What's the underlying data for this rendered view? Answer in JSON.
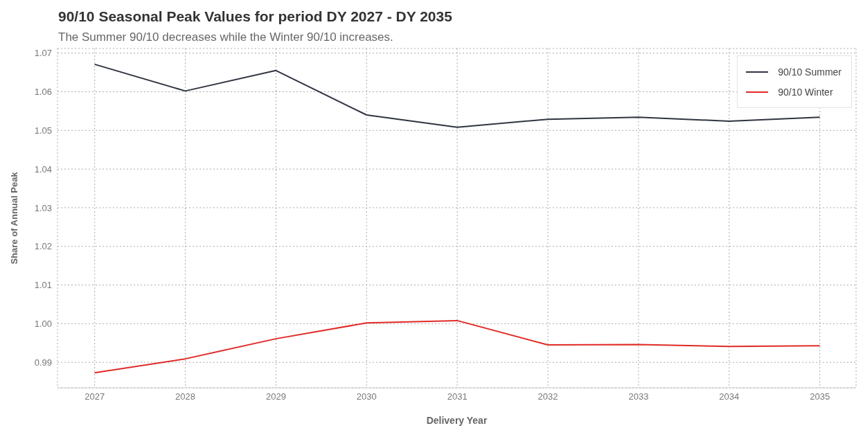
{
  "chart_data": {
    "type": "line",
    "title": "90/10 Seasonal Peak Values for period DY 2027 - DY 2035",
    "subtitle": "The Summer 90/10 decreases while the Winter 90/10 increases.",
    "xlabel": "Delivery Year",
    "ylabel": "Share of Annual Peak",
    "x": [
      2027,
      2028,
      2029,
      2030,
      2031,
      2032,
      2033,
      2034,
      2035
    ],
    "series": [
      {
        "name": "90/10 Summer",
        "color": "#2f3440",
        "values": [
          1.0671,
          1.0602,
          1.0655,
          1.054,
          1.0508,
          1.0529,
          1.0534,
          1.0524,
          1.0534
        ]
      },
      {
        "name": "90/10 Winter",
        "color": "#e02a26",
        "values": [
          0.9873,
          0.9909,
          0.9961,
          1.0002,
          1.0008,
          0.9945,
          0.9946,
          0.9941,
          0.9943
        ]
      }
    ],
    "xlim": [
      2026.59,
      2035.4
    ],
    "xticks": [
      2027,
      2028,
      2029,
      2030,
      2031,
      2032,
      2033,
      2034,
      2035
    ],
    "ylim": [
      0.9834,
      1.0712
    ],
    "yticks": [
      {
        "value": 0.99,
        "label": "0.99"
      },
      {
        "value": 1.0,
        "label": "1.00"
      },
      {
        "value": 1.01,
        "label": "1.01"
      },
      {
        "value": 1.02,
        "label": "1.02"
      },
      {
        "value": 1.03,
        "label": "1.03"
      },
      {
        "value": 1.04,
        "label": "1.04"
      },
      {
        "value": 1.05,
        "label": "1.05"
      },
      {
        "value": 1.06,
        "label": "1.06"
      },
      {
        "value": 1.07,
        "label": "1.07"
      }
    ],
    "grid": true,
    "legend": "top right",
    "marker": "none",
    "line_style": "solid"
  }
}
